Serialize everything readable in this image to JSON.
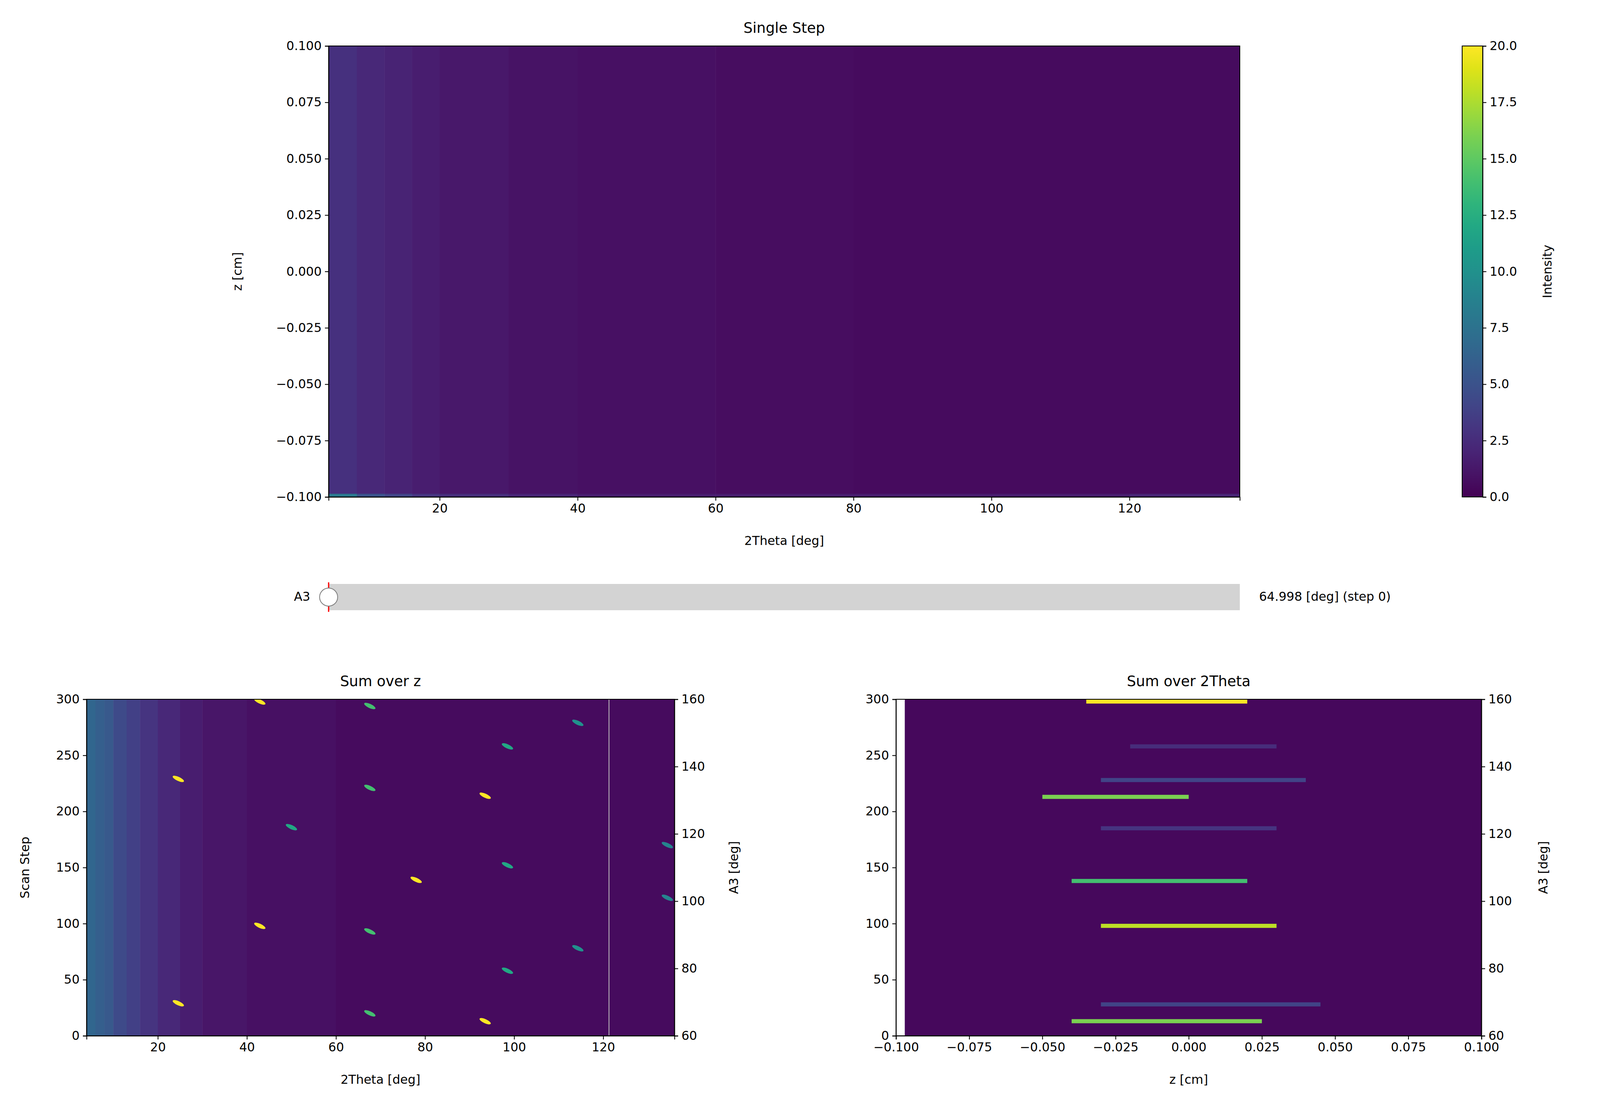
{
  "chart_data": [
    {
      "type": "heatmap",
      "title": "Single Step",
      "x_label": "2Theta [deg]",
      "y_label": "z [cm]",
      "xlim": [
        3.9,
        136
      ],
      "ylim": [
        -0.1,
        0.1
      ],
      "xticks": [
        20,
        40,
        60,
        80,
        100,
        120
      ],
      "yticks": [
        {
          "value": -0.1,
          "label": "−0.100"
        },
        {
          "value": -0.075,
          "label": "−0.075"
        },
        {
          "value": -0.05,
          "label": "−0.050"
        },
        {
          "value": -0.025,
          "label": "−0.025"
        },
        {
          "value": 0,
          "label": "0.000"
        },
        {
          "value": 0.025,
          "label": "0.025"
        },
        {
          "value": 0.05,
          "label": "0.050"
        },
        {
          "value": 0.075,
          "label": "0.075"
        },
        {
          "value": 0.1,
          "label": "0.100"
        }
      ],
      "x_edges": [
        3.9,
        8,
        12,
        16,
        20,
        30,
        40,
        60,
        80,
        100,
        120,
        136
      ],
      "y_edges": [
        -0.1,
        -0.0985,
        0.1
      ],
      "z": [
        [
          8,
          5,
          4,
          3,
          2.5,
          2,
          1.5,
          1.5,
          1.5,
          1.5,
          2
        ],
        [
          2.8,
          2.2,
          1.9,
          1.6,
          1.3,
          1.0,
          0.8,
          0.7,
          0.6,
          0.6,
          0.6
        ]
      ],
      "colorbar": {
        "label": "Intensity",
        "range": [
          0,
          20
        ],
        "ticks": [
          {
            "value": 0,
            "label": "0.0"
          },
          {
            "value": 2.5,
            "label": "2.5"
          },
          {
            "value": 5,
            "label": "5.0"
          },
          {
            "value": 7.5,
            "label": "7.5"
          },
          {
            "value": 10,
            "label": "10.0"
          },
          {
            "value": 12.5,
            "label": "12.5"
          },
          {
            "value": 15,
            "label": "15.0"
          },
          {
            "value": 17.5,
            "label": "17.5"
          },
          {
            "value": 20,
            "label": "20.0"
          }
        ]
      }
    },
    {
      "type": "heatmap",
      "title": "Sum over z",
      "x_label": "2Theta [deg]",
      "y_label": "Scan Step",
      "y2_label": "A3 [deg]",
      "xlim": [
        4,
        136
      ],
      "ylim": [
        0,
        300
      ],
      "y2lim": [
        60,
        160
      ],
      "xticks": [
        20,
        40,
        60,
        80,
        100,
        120
      ],
      "yticks": [
        0,
        50,
        100,
        150,
        200,
        250,
        300
      ],
      "y2ticks": [
        60,
        80,
        100,
        120,
        140,
        160
      ],
      "x_edges": [
        4,
        6,
        8,
        10,
        13,
        16,
        20,
        25,
        30,
        40,
        60,
        136
      ],
      "y_edges": [
        0,
        300
      ],
      "z": [
        [
          6.5,
          6,
          5.5,
          4.5,
          3.8,
          3,
          2.2,
          1.6,
          1.1,
          0.8,
          0.6
        ]
      ],
      "peaks": {
        "x": [
          24.6,
          24.6,
          42.9,
          42.9,
          67.6,
          67.6,
          67.6,
          67.6,
          50,
          78,
          93.5,
          93.5,
          98.5,
          98.5,
          98.5,
          114.3,
          114.3,
          134.4,
          134.4
        ],
        "y": [
          229,
          29,
          298,
          98,
          294,
          221,
          93,
          20,
          186,
          139,
          214,
          13,
          258,
          152,
          58,
          279,
          78,
          170,
          123
        ],
        "intensity": [
          20,
          20,
          20,
          20,
          14,
          14,
          14,
          14,
          12,
          20,
          20,
          20,
          12,
          12,
          12,
          10,
          10,
          9,
          9
        ]
      },
      "dead_column": 121.3
    },
    {
      "type": "heatmap",
      "title": "Sum over 2Theta",
      "x_label": "z [cm]",
      "y2_label": "A3 [deg]",
      "xlim": [
        -0.1,
        0.1
      ],
      "ylim": [
        0,
        300
      ],
      "y2lim": [
        60,
        160
      ],
      "xticks": [
        {
          "value": -0.1,
          "label": "−0.100"
        },
        {
          "value": -0.075,
          "label": "−0.075"
        },
        {
          "value": -0.05,
          "label": "−0.050"
        },
        {
          "value": -0.025,
          "label": "−0.025"
        },
        {
          "value": 0,
          "label": "0.000"
        },
        {
          "value": 0.025,
          "label": "0.025"
        },
        {
          "value": 0.05,
          "label": "0.050"
        },
        {
          "value": 0.075,
          "label": "0.075"
        },
        {
          "value": 0.1,
          "label": "0.100"
        }
      ],
      "yticks": [
        0,
        50,
        100,
        150,
        200,
        250,
        300
      ],
      "y2ticks": [
        60,
        80,
        100,
        120,
        140,
        160
      ],
      "x_edges": [
        -0.097,
        0.1
      ],
      "y_edges": [
        0,
        300
      ],
      "z": [
        [
          0.4
        ]
      ],
      "streaks": {
        "y": [
          13,
          28,
          98,
          138,
          185,
          213,
          228,
          258,
          298
        ],
        "x_start": [
          -0.04,
          -0.03,
          -0.03,
          -0.04,
          -0.03,
          -0.05,
          -0.03,
          -0.02,
          -0.035
        ],
        "x_end": [
          0.025,
          0.045,
          0.03,
          0.02,
          0.03,
          0.0,
          0.04,
          0.03,
          0.02
        ],
        "intensity": [
          16,
          4,
          18,
          14,
          3,
          16,
          4,
          2.5,
          20
        ]
      }
    }
  ],
  "slider": {
    "label": "A3",
    "value_label": "64.998 [deg] (step 0)",
    "step": 0,
    "range": [
      0,
      300
    ]
  }
}
